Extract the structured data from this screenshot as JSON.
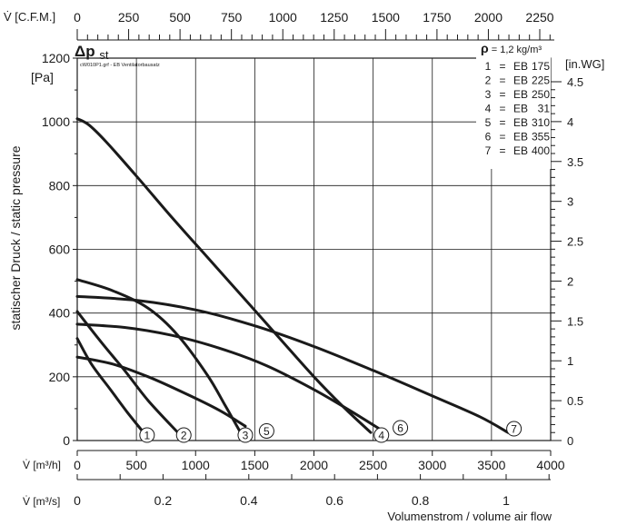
{
  "chart_data": {
    "type": "line",
    "title": "",
    "top_axis": {
      "label": "V̇ [C.F.M.]",
      "ticks": [
        "0",
        "250",
        "500",
        "750",
        "1000",
        "1250",
        "1500",
        "1750",
        "2000",
        "2250"
      ]
    },
    "bottom_axis_1": {
      "label": "V̇ [m³/h]",
      "range": [
        0,
        4000
      ],
      "ticks": [
        "0",
        "500",
        "1000",
        "1500",
        "2000",
        "2500",
        "3000",
        "3500",
        "4000"
      ]
    },
    "bottom_axis_2": {
      "label": "V̇ [m³/s]",
      "ticks": [
        "0",
        "0.2",
        "0.4",
        "0.6",
        "0.8",
        "1"
      ]
    },
    "xlabel": "Volumenstrom / volume air flow",
    "left_axis": {
      "label": "statischer Druck / static pressure",
      "unit": "[Pa]",
      "range": [
        0,
        1200
      ],
      "ticks": [
        "0",
        "200",
        "400",
        "600",
        "800",
        "1000",
        "1200"
      ]
    },
    "right_axis": {
      "unit": "[in.WG]",
      "ticks": [
        "0",
        "0.5",
        "1",
        "1.5",
        "2",
        "2.5",
        "3",
        "3.5",
        "4",
        "4.5"
      ]
    },
    "delta_label": "Δp",
    "delta_sub": "st",
    "file_note": "cW010P1.grf - EB Ventilatorbausatz",
    "density_symbol": "ρ",
    "density_text": "= 1,2 kg/m³",
    "legend": [
      {
        "num": "1",
        "eq": "=",
        "name": "EB",
        "size": "175"
      },
      {
        "num": "2",
        "eq": "=",
        "name": "EB",
        "size": "225"
      },
      {
        "num": "3",
        "eq": "=",
        "name": "EB",
        "size": "250"
      },
      {
        "num": "4",
        "eq": "=",
        "name": "EB",
        "size": "31"
      },
      {
        "num": "5",
        "eq": "=",
        "name": "EB",
        "size": "310"
      },
      {
        "num": "6",
        "eq": "=",
        "name": "EB",
        "size": "355"
      },
      {
        "num": "7",
        "eq": "=",
        "name": "EB",
        "size": "400"
      }
    ],
    "grid": true,
    "series": [
      {
        "name": "1",
        "points": [
          [
            0,
            320
          ],
          [
            120,
            240
          ],
          [
            280,
            160
          ],
          [
            420,
            90
          ],
          [
            550,
            30
          ]
        ]
      },
      {
        "name": "2",
        "points": [
          [
            0,
            405
          ],
          [
            200,
            310
          ],
          [
            400,
            220
          ],
          [
            600,
            125
          ],
          [
            850,
            25
          ]
        ]
      },
      {
        "name": "3",
        "points": [
          [
            0,
            505
          ],
          [
            300,
            470
          ],
          [
            600,
            415
          ],
          [
            850,
            330
          ],
          [
            1100,
            205
          ],
          [
            1250,
            110
          ],
          [
            1380,
            25
          ]
        ]
      },
      {
        "name": "4",
        "points": [
          [
            0,
            1010
          ],
          [
            100,
            990
          ],
          [
            250,
            935
          ],
          [
            500,
            830
          ],
          [
            800,
            700
          ],
          [
            1100,
            575
          ],
          [
            1400,
            450
          ],
          [
            1700,
            325
          ],
          [
            2000,
            200
          ],
          [
            2250,
            105
          ],
          [
            2480,
            25
          ]
        ]
      },
      {
        "name": "5",
        "points": [
          [
            0,
            262
          ],
          [
            300,
            240
          ],
          [
            600,
            200
          ],
          [
            900,
            150
          ],
          [
            1200,
            95
          ],
          [
            1420,
            45
          ]
        ]
      },
      {
        "name": "6",
        "points": [
          [
            0,
            365
          ],
          [
            400,
            355
          ],
          [
            800,
            330
          ],
          [
            1200,
            290
          ],
          [
            1600,
            235
          ],
          [
            2000,
            160
          ],
          [
            2300,
            95
          ],
          [
            2560,
            35
          ]
        ]
      },
      {
        "name": "7",
        "points": [
          [
            0,
            452
          ],
          [
            500,
            440
          ],
          [
            1000,
            410
          ],
          [
            1500,
            360
          ],
          [
            2000,
            295
          ],
          [
            2500,
            220
          ],
          [
            3000,
            140
          ],
          [
            3400,
            75
          ],
          [
            3640,
            25
          ]
        ]
      }
    ],
    "markers": [
      {
        "label": "1",
        "x": 590,
        "y": 17
      },
      {
        "label": "2",
        "x": 900,
        "y": 17
      },
      {
        "label": "3",
        "x": 1420,
        "y": 17
      },
      {
        "label": "5",
        "x": 1600,
        "y": 30
      },
      {
        "label": "4",
        "x": 2570,
        "y": 17
      },
      {
        "label": "6",
        "x": 2730,
        "y": 40
      },
      {
        "label": "7",
        "x": 3690,
        "y": 37
      }
    ]
  }
}
